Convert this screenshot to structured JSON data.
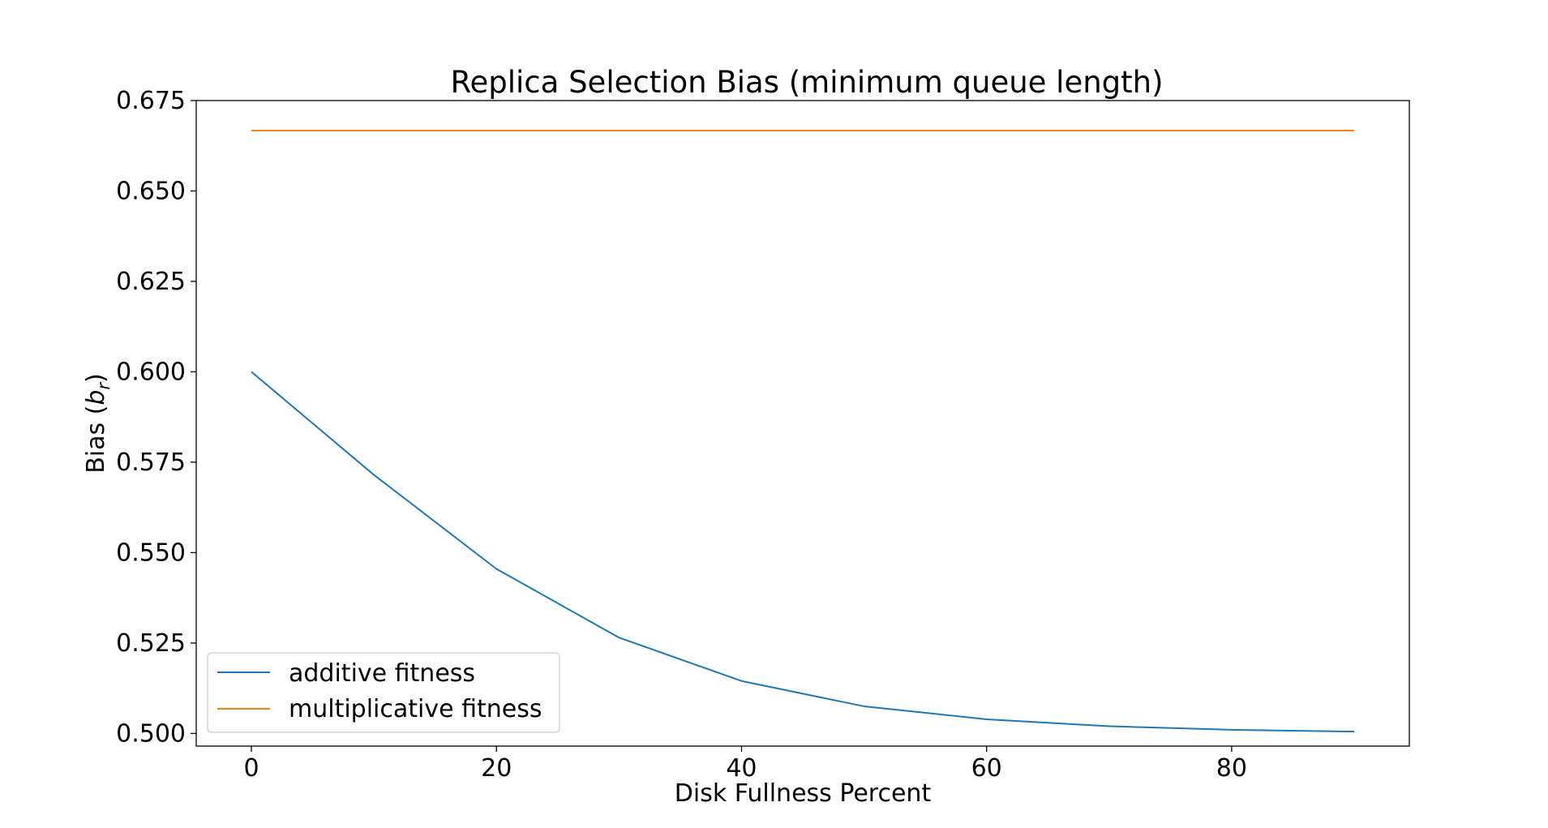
{
  "chart_data": {
    "type": "line",
    "title": "Replica Selection Bias (minimum queue length)",
    "xlabel": "Disk Fullness Percent",
    "ylabel_main": "Bias (",
    "ylabel_sym": "b",
    "ylabel_sub": "r",
    "ylabel_close": ")",
    "xlim": [
      -4.5,
      94.5
    ],
    "ylim": [
      0.4965,
      0.675
    ],
    "xticks": [
      0,
      20,
      40,
      60,
      80
    ],
    "xtick_labels": [
      "0",
      "20",
      "40",
      "60",
      "80"
    ],
    "yticks": [
      0.5,
      0.525,
      0.55,
      0.575,
      0.6,
      0.625,
      0.65,
      0.675
    ],
    "ytick_labels": [
      "0.500",
      "0.525",
      "0.550",
      "0.575",
      "0.600",
      "0.625",
      "0.650",
      "0.675"
    ],
    "grid": false,
    "legend_position": "lower-left",
    "x": [
      0,
      10,
      20,
      30,
      40,
      50,
      60,
      70,
      80,
      90
    ],
    "series": [
      {
        "name": "additive fitness",
        "color": "#1f77b4",
        "values": [
          0.6,
          0.5715,
          0.5455,
          0.5265,
          0.5145,
          0.5075,
          0.5039,
          0.502,
          0.501,
          0.5005
        ]
      },
      {
        "name": "multiplicative fitness",
        "color": "#ff7f0e",
        "values": [
          0.6667,
          0.6667,
          0.6667,
          0.6667,
          0.6667,
          0.6667,
          0.6667,
          0.6667,
          0.6667,
          0.6667
        ]
      }
    ]
  }
}
